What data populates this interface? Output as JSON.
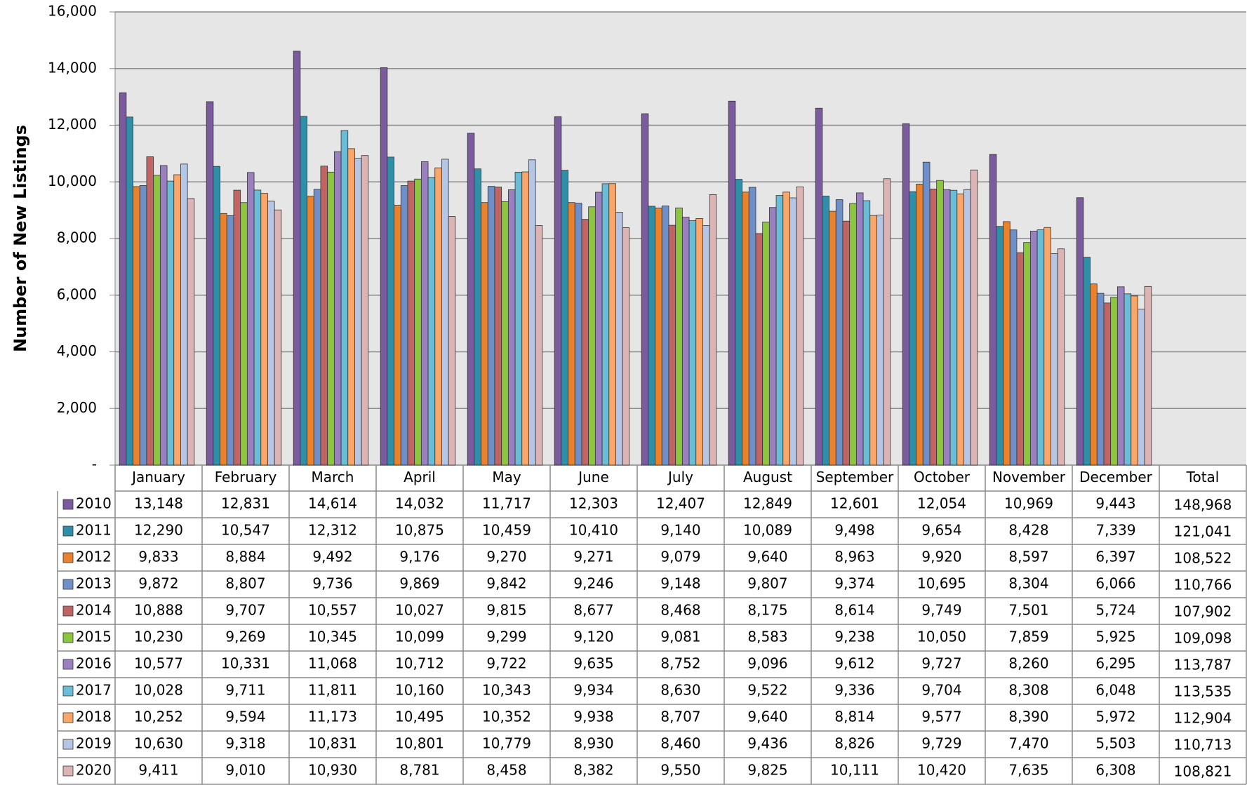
{
  "chart_data": {
    "type": "bar",
    "y_label": "Number of  New Listings",
    "categories": [
      "January",
      "February",
      "March",
      "April",
      "May",
      "June",
      "July",
      "August",
      "September",
      "October",
      "November",
      "December"
    ],
    "total_header": "Total",
    "ylim": [
      0,
      16000
    ],
    "yticks": [
      {
        "value": 0,
        "label": "-"
      },
      {
        "value": 2000,
        "label": "2,000"
      },
      {
        "value": 4000,
        "label": "4,000"
      },
      {
        "value": 6000,
        "label": "6,000"
      },
      {
        "value": 8000,
        "label": "8,000"
      },
      {
        "value": 10000,
        "label": "10,000"
      },
      {
        "value": 12000,
        "label": "12,000"
      },
      {
        "value": 14000,
        "label": "14,000"
      },
      {
        "value": 16000,
        "label": "16,000"
      }
    ],
    "grid": true,
    "series": [
      {
        "name": "2010",
        "color": "#7b5a9e",
        "values": [
          13148,
          12831,
          14614,
          14032,
          11717,
          12303,
          12407,
          12849,
          12601,
          12054,
          10969,
          9443
        ],
        "value_labels": [
          "13,148",
          "12,831",
          "14,614",
          "14,032",
          "11,717",
          "12,303",
          "12,407",
          "12,849",
          "12,601",
          "12,054",
          "10,969",
          "9,443"
        ],
        "total": "148,968"
      },
      {
        "name": "2011",
        "color": "#2f8ea8",
        "values": [
          12290,
          10547,
          12312,
          10875,
          10459,
          10410,
          9140,
          10089,
          9498,
          9654,
          8428,
          7339
        ],
        "value_labels": [
          "12,290",
          "10,547",
          "12,312",
          "10,875",
          "10,459",
          "10,410",
          "9,140",
          "10,089",
          "9,498",
          "9,654",
          "8,428",
          "7,339"
        ],
        "total": "121,041"
      },
      {
        "name": "2012",
        "color": "#e8822e",
        "values": [
          9833,
          8884,
          9492,
          9176,
          9270,
          9271,
          9079,
          9640,
          8963,
          9920,
          8597,
          6397
        ],
        "value_labels": [
          "9,833",
          "8,884",
          "9,492",
          "9,176",
          "9,270",
          "9,271",
          "9,079",
          "9,640",
          "8,963",
          "9,920",
          "8,597",
          "6,397"
        ],
        "total": "108,522"
      },
      {
        "name": "2013",
        "color": "#6f8fc8",
        "values": [
          9872,
          8807,
          9736,
          9869,
          9842,
          9246,
          9148,
          9807,
          9374,
          10695,
          8304,
          6066
        ],
        "value_labels": [
          "9,872",
          "8,807",
          "9,736",
          "9,869",
          "9,842",
          "9,246",
          "9,148",
          "9,807",
          "9,374",
          "10,695",
          "8,304",
          "6,066"
        ],
        "total": "110,766"
      },
      {
        "name": "2014",
        "color": "#c06464",
        "values": [
          10888,
          9707,
          10557,
          10027,
          9815,
          8677,
          8468,
          8175,
          8614,
          9749,
          7501,
          5724
        ],
        "value_labels": [
          "10,888",
          "9,707",
          "10,557",
          "10,027",
          "9,815",
          "8,677",
          "8,468",
          "8,175",
          "8,614",
          "9,749",
          "7,501",
          "5,724"
        ],
        "total": "107,902"
      },
      {
        "name": "2015",
        "color": "#8cc63f",
        "values": [
          10230,
          9269,
          10345,
          10099,
          9299,
          9120,
          9081,
          8583,
          9238,
          10050,
          7859,
          5925
        ],
        "value_labels": [
          "10,230",
          "9,269",
          "10,345",
          "10,099",
          "9,299",
          "9,120",
          "9,081",
          "8,583",
          "9,238",
          "10,050",
          "7,859",
          "5,925"
        ],
        "total": "109,098"
      },
      {
        "name": "2016",
        "color": "#9b80bf",
        "values": [
          10577,
          10331,
          11068,
          10712,
          9722,
          9635,
          8752,
          9096,
          9612,
          9727,
          8260,
          6295
        ],
        "value_labels": [
          "10,577",
          "10,331",
          "11,068",
          "10,712",
          "9,722",
          "9,635",
          "8,752",
          "9,096",
          "9,612",
          "9,727",
          "8,260",
          "6,295"
        ],
        "total": "113,787"
      },
      {
        "name": "2017",
        "color": "#6bbcd6",
        "values": [
          10028,
          9711,
          11811,
          10160,
          10343,
          9934,
          8630,
          9522,
          9336,
          9704,
          8308,
          6048
        ],
        "value_labels": [
          "10,028",
          "9,711",
          "11,811",
          "10,160",
          "10,343",
          "9,934",
          "8,630",
          "9,522",
          "9,336",
          "9,704",
          "8,308",
          "6,048"
        ],
        "total": "113,535"
      },
      {
        "name": "2018",
        "color": "#f9a66a",
        "values": [
          10252,
          9594,
          11173,
          10495,
          10352,
          9938,
          8707,
          9640,
          8814,
          9577,
          8390,
          5972
        ],
        "value_labels": [
          "10,252",
          "9,594",
          "11,173",
          "10,495",
          "10,352",
          "9,938",
          "8,707",
          "9,640",
          "8,814",
          "9,577",
          "8,390",
          "5,972"
        ],
        "total": "112,904"
      },
      {
        "name": "2019",
        "color": "#b4c6e4",
        "values": [
          10630,
          9318,
          10831,
          10801,
          10779,
          8930,
          8460,
          9436,
          8826,
          9729,
          7470,
          5503
        ],
        "value_labels": [
          "10,630",
          "9,318",
          "10,831",
          "10,801",
          "10,779",
          "8,930",
          "8,460",
          "9,436",
          "8,826",
          "9,729",
          "7,470",
          "5,503"
        ],
        "total": "110,713"
      },
      {
        "name": "2020",
        "color": "#dcb4b4",
        "values": [
          9411,
          9010,
          10930,
          8781,
          8458,
          8382,
          9550,
          9825,
          10111,
          10420,
          7635,
          6308
        ],
        "value_labels": [
          "9,411",
          "9,010",
          "10,930",
          "8,781",
          "8,458",
          "8,382",
          "9,550",
          "9,825",
          "10,111",
          "10,420",
          "7,635",
          "6,308"
        ],
        "total": "108,821"
      }
    ]
  }
}
